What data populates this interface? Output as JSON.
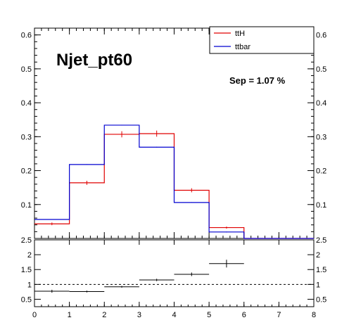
{
  "chart_data": {
    "type": "histogram",
    "title": "Njet_pt60",
    "annotation": "Sep = 1.07 %",
    "x_edges": [
      0,
      1,
      2,
      3,
      4,
      5,
      6,
      7,
      8
    ],
    "xlim": [
      0,
      8
    ],
    "ylim": [
      0,
      0.62
    ],
    "y_ticks": [
      0.1,
      0.2,
      0.3,
      0.4,
      0.5,
      0.6
    ],
    "x_ticks": [
      0,
      1,
      2,
      3,
      4,
      5,
      6,
      7,
      8
    ],
    "legend": {
      "position": "top-right"
    },
    "series": [
      {
        "name": "ttH",
        "color": "#e00000",
        "values": [
          0.043,
          0.164,
          0.307,
          0.309,
          0.142,
          0.032,
          0.0,
          0.0
        ],
        "errors": [
          0.004,
          0.006,
          0.009,
          0.009,
          0.006,
          0.003,
          0.0,
          0.0
        ]
      },
      {
        "name": "ttbar",
        "color": "#0000d0",
        "values": [
          0.056,
          0.218,
          0.334,
          0.269,
          0.106,
          0.019,
          0.0,
          0.0
        ],
        "errors": [
          0.001,
          0.001,
          0.001,
          0.001,
          0.001,
          0.001,
          0.0,
          0.0
        ]
      }
    ],
    "ratio": {
      "ylim": [
        0.25,
        2.5
      ],
      "y_ticks": [
        0.5,
        1,
        1.5,
        2,
        2.5
      ],
      "reference_line": 1,
      "values": [
        0.77,
        0.76,
        0.92,
        1.15,
        1.34,
        1.7
      ],
      "errors": [
        0.05,
        0.03,
        0.03,
        0.04,
        0.06,
        0.13
      ]
    }
  }
}
